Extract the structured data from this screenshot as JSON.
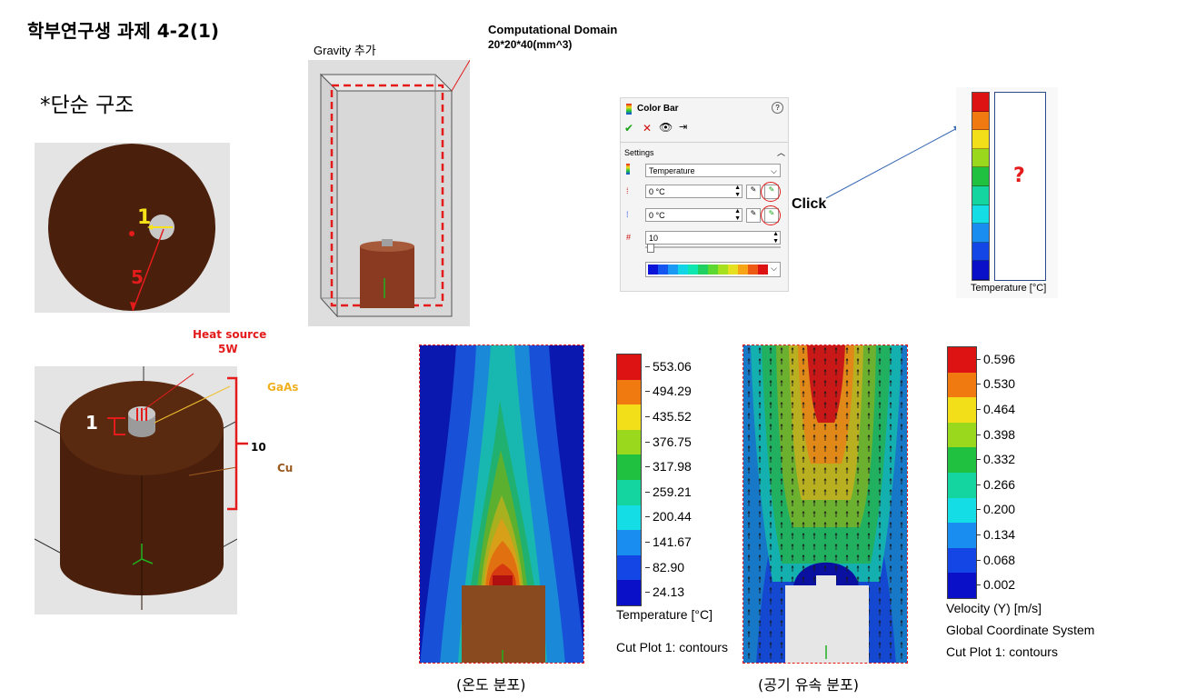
{
  "title": "학부연구생 과제 4-2(1)",
  "subtitle": "*단순 구조",
  "top_view": {
    "label_inner": "1",
    "label_outer": "5"
  },
  "iso_view": {
    "heat_source_line1": "Heat source",
    "heat_source_line2": "5W",
    "label_gaas": "GaAs",
    "label_cu": "Cu",
    "label_height": "10",
    "label_chip": "1"
  },
  "domain_view": {
    "gravity_label": "Gravity 추가",
    "domain_title": "Computational Domain",
    "domain_size": "20*20*40(mm^3)"
  },
  "color_bar_panel": {
    "title": "Color Bar",
    "section": "Settings",
    "parameter": "Temperature",
    "max_value": "0 °C",
    "min_value": "0 °C",
    "levels": "10",
    "palette": [
      "#0a14d8",
      "#1656f0",
      "#1a9af5",
      "#12d6e6",
      "#10e6b0",
      "#20d060",
      "#5cd830",
      "#a6e01e",
      "#e6e020",
      "#f7a416",
      "#ee5a14",
      "#dd1212"
    ]
  },
  "click_label": "Click",
  "preview_bar": {
    "question": "?",
    "caption": "Temperature [°C]"
  },
  "temperature_plot": {
    "legend_values": [
      "553.06",
      "494.29",
      "435.52",
      "376.75",
      "317.98",
      "259.21",
      "200.44",
      "141.67",
      "82.90",
      "24.13"
    ],
    "legend_caption": "Temperature [°C]",
    "cut_plot": "Cut Plot 1: contours",
    "caption": "(온도 분포)"
  },
  "velocity_plot": {
    "legend_values": [
      "0.596",
      "0.530",
      "0.464",
      "0.398",
      "0.332",
      "0.266",
      "0.200",
      "0.134",
      "0.068",
      "0.002"
    ],
    "legend_caption": "Velocity (Y) [m/s]",
    "coord_system": "Global Coordinate System",
    "cut_plot": "Cut Plot 1: contours",
    "caption": "(공기 유속 분포)"
  },
  "legend_colors": [
    "#dd1212",
    "#f07a10",
    "#f2df1a",
    "#9ad81e",
    "#20c040",
    "#14d4a0",
    "#14dde6",
    "#1a8ef0",
    "#1446e6",
    "#0a10c8"
  ]
}
